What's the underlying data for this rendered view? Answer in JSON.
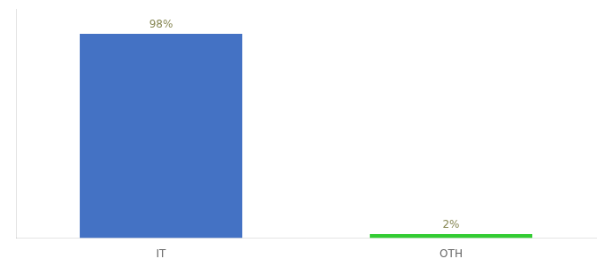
{
  "chart_data": {
    "type": "bar",
    "categories": [
      "IT",
      "OTH"
    ],
    "values": [
      98,
      2
    ],
    "value_labels": [
      "98%",
      "2%"
    ],
    "colors": [
      "#4472c4",
      "#33cc33"
    ],
    "ylim": [
      0,
      110
    ],
    "data_labels": true,
    "tick_labels": "x",
    "grid": false
  }
}
